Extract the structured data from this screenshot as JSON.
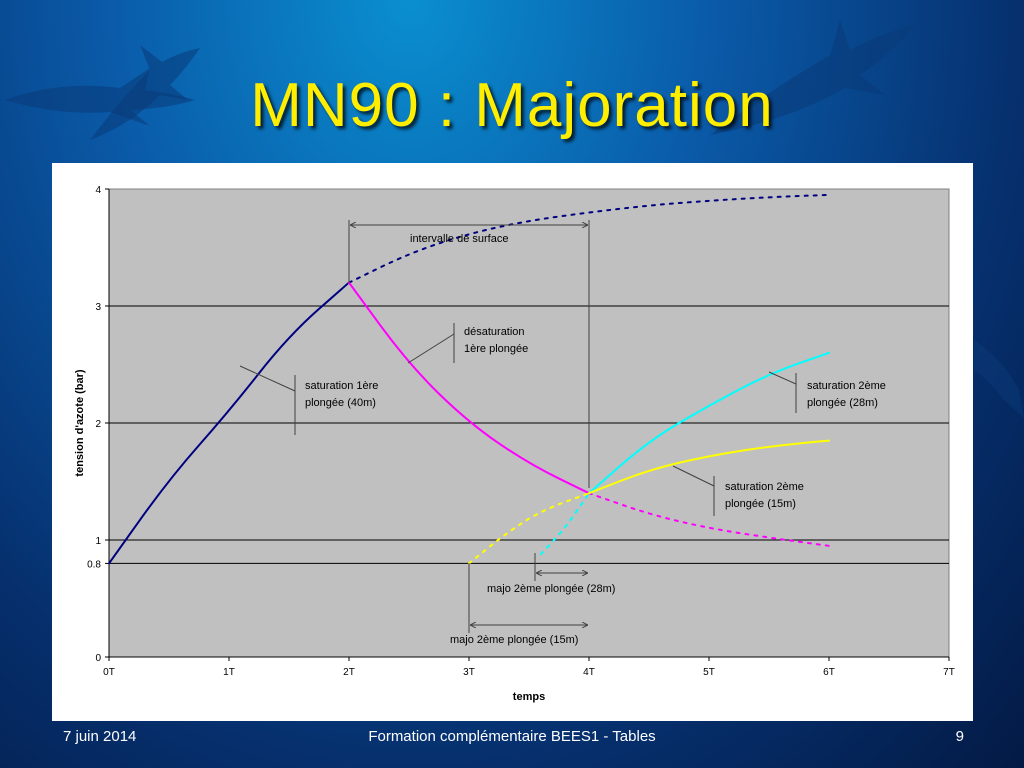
{
  "slide": {
    "title": "MN90 : Majoration",
    "footer_date": "7 juin 2014",
    "footer_center": "Formation complémentaire BEES1 - Tables",
    "page_number": "9"
  },
  "chart_data": {
    "type": "line",
    "xlabel": "temps",
    "ylabel": "tension d'azote (bar)",
    "x_tick_labels": [
      "0T",
      "1T",
      "2T",
      "3T",
      "4T",
      "5T",
      "6T",
      "7T"
    ],
    "xlim": [
      0,
      7
    ],
    "y_ticks": [
      0,
      0.8,
      1,
      2,
      3,
      4
    ],
    "y_tick_labels": [
      "0",
      "0.8",
      "1",
      "2",
      "3",
      "4"
    ],
    "ylim": [
      0,
      4
    ],
    "grid": "horizontal",
    "plot_background": "#c0c0c0",
    "series": [
      {
        "id": "sat1",
        "color": "#000080",
        "dash": false,
        "points": [
          [
            0,
            0.8
          ],
          [
            0.5,
            1.52
          ],
          [
            1,
            2.1
          ],
          [
            1.5,
            2.75
          ],
          [
            2,
            3.2
          ]
        ]
      },
      {
        "id": "sat1-cont",
        "color": "#000080",
        "dash": true,
        "points": [
          [
            2,
            3.2
          ],
          [
            2.5,
            3.45
          ],
          [
            3,
            3.62
          ],
          [
            3.5,
            3.73
          ],
          [
            4,
            3.8
          ],
          [
            4.5,
            3.86
          ],
          [
            5,
            3.9
          ],
          [
            5.5,
            3.93
          ],
          [
            6,
            3.95
          ]
        ]
      },
      {
        "id": "desat1",
        "color": "#ff00ff",
        "dash": false,
        "points": [
          [
            2,
            3.2
          ],
          [
            2.5,
            2.5
          ],
          [
            3,
            2.0
          ],
          [
            3.5,
            1.65
          ],
          [
            4,
            1.4
          ]
        ]
      },
      {
        "id": "desat1-cont",
        "color": "#ff00ff",
        "dash": true,
        "points": [
          [
            4,
            1.4
          ],
          [
            4.5,
            1.22
          ],
          [
            5,
            1.1
          ],
          [
            5.5,
            1.02
          ],
          [
            6,
            0.95
          ]
        ]
      },
      {
        "id": "sat2-28m",
        "color": "#00ffff",
        "dash": false,
        "points": [
          [
            4,
            1.4
          ],
          [
            4.5,
            1.85
          ],
          [
            5,
            2.15
          ],
          [
            5.5,
            2.42
          ],
          [
            6,
            2.6
          ]
        ]
      },
      {
        "id": "majo-28m",
        "color": "#00ffff",
        "dash": true,
        "points": [
          [
            3.6,
            0.88
          ],
          [
            3.8,
            1.1
          ],
          [
            4,
            1.4
          ]
        ]
      },
      {
        "id": "sat2-15m",
        "color": "#ffff00",
        "dash": false,
        "points": [
          [
            4,
            1.4
          ],
          [
            4.5,
            1.6
          ],
          [
            5,
            1.72
          ],
          [
            5.5,
            1.8
          ],
          [
            6,
            1.85
          ]
        ]
      },
      {
        "id": "majo-15m",
        "color": "#ffff00",
        "dash": true,
        "points": [
          [
            3,
            0.8
          ],
          [
            3.3,
            1.05
          ],
          [
            3.6,
            1.25
          ],
          [
            4,
            1.4
          ]
        ]
      }
    ],
    "annotations": {
      "interval": "intervalle de surface",
      "desat1": [
        "désaturation",
        "1ère plongée"
      ],
      "sat1": [
        "saturation 1ère",
        "plongée (40m)"
      ],
      "sat2_28": [
        "saturation 2ème",
        "plongée (28m)"
      ],
      "sat2_15": [
        "saturation 2ème",
        "plongée (15m)"
      ],
      "majo_28": "majo 2ème plongée (28m)",
      "majo_15": "majo 2ème plongée (15m)"
    }
  }
}
